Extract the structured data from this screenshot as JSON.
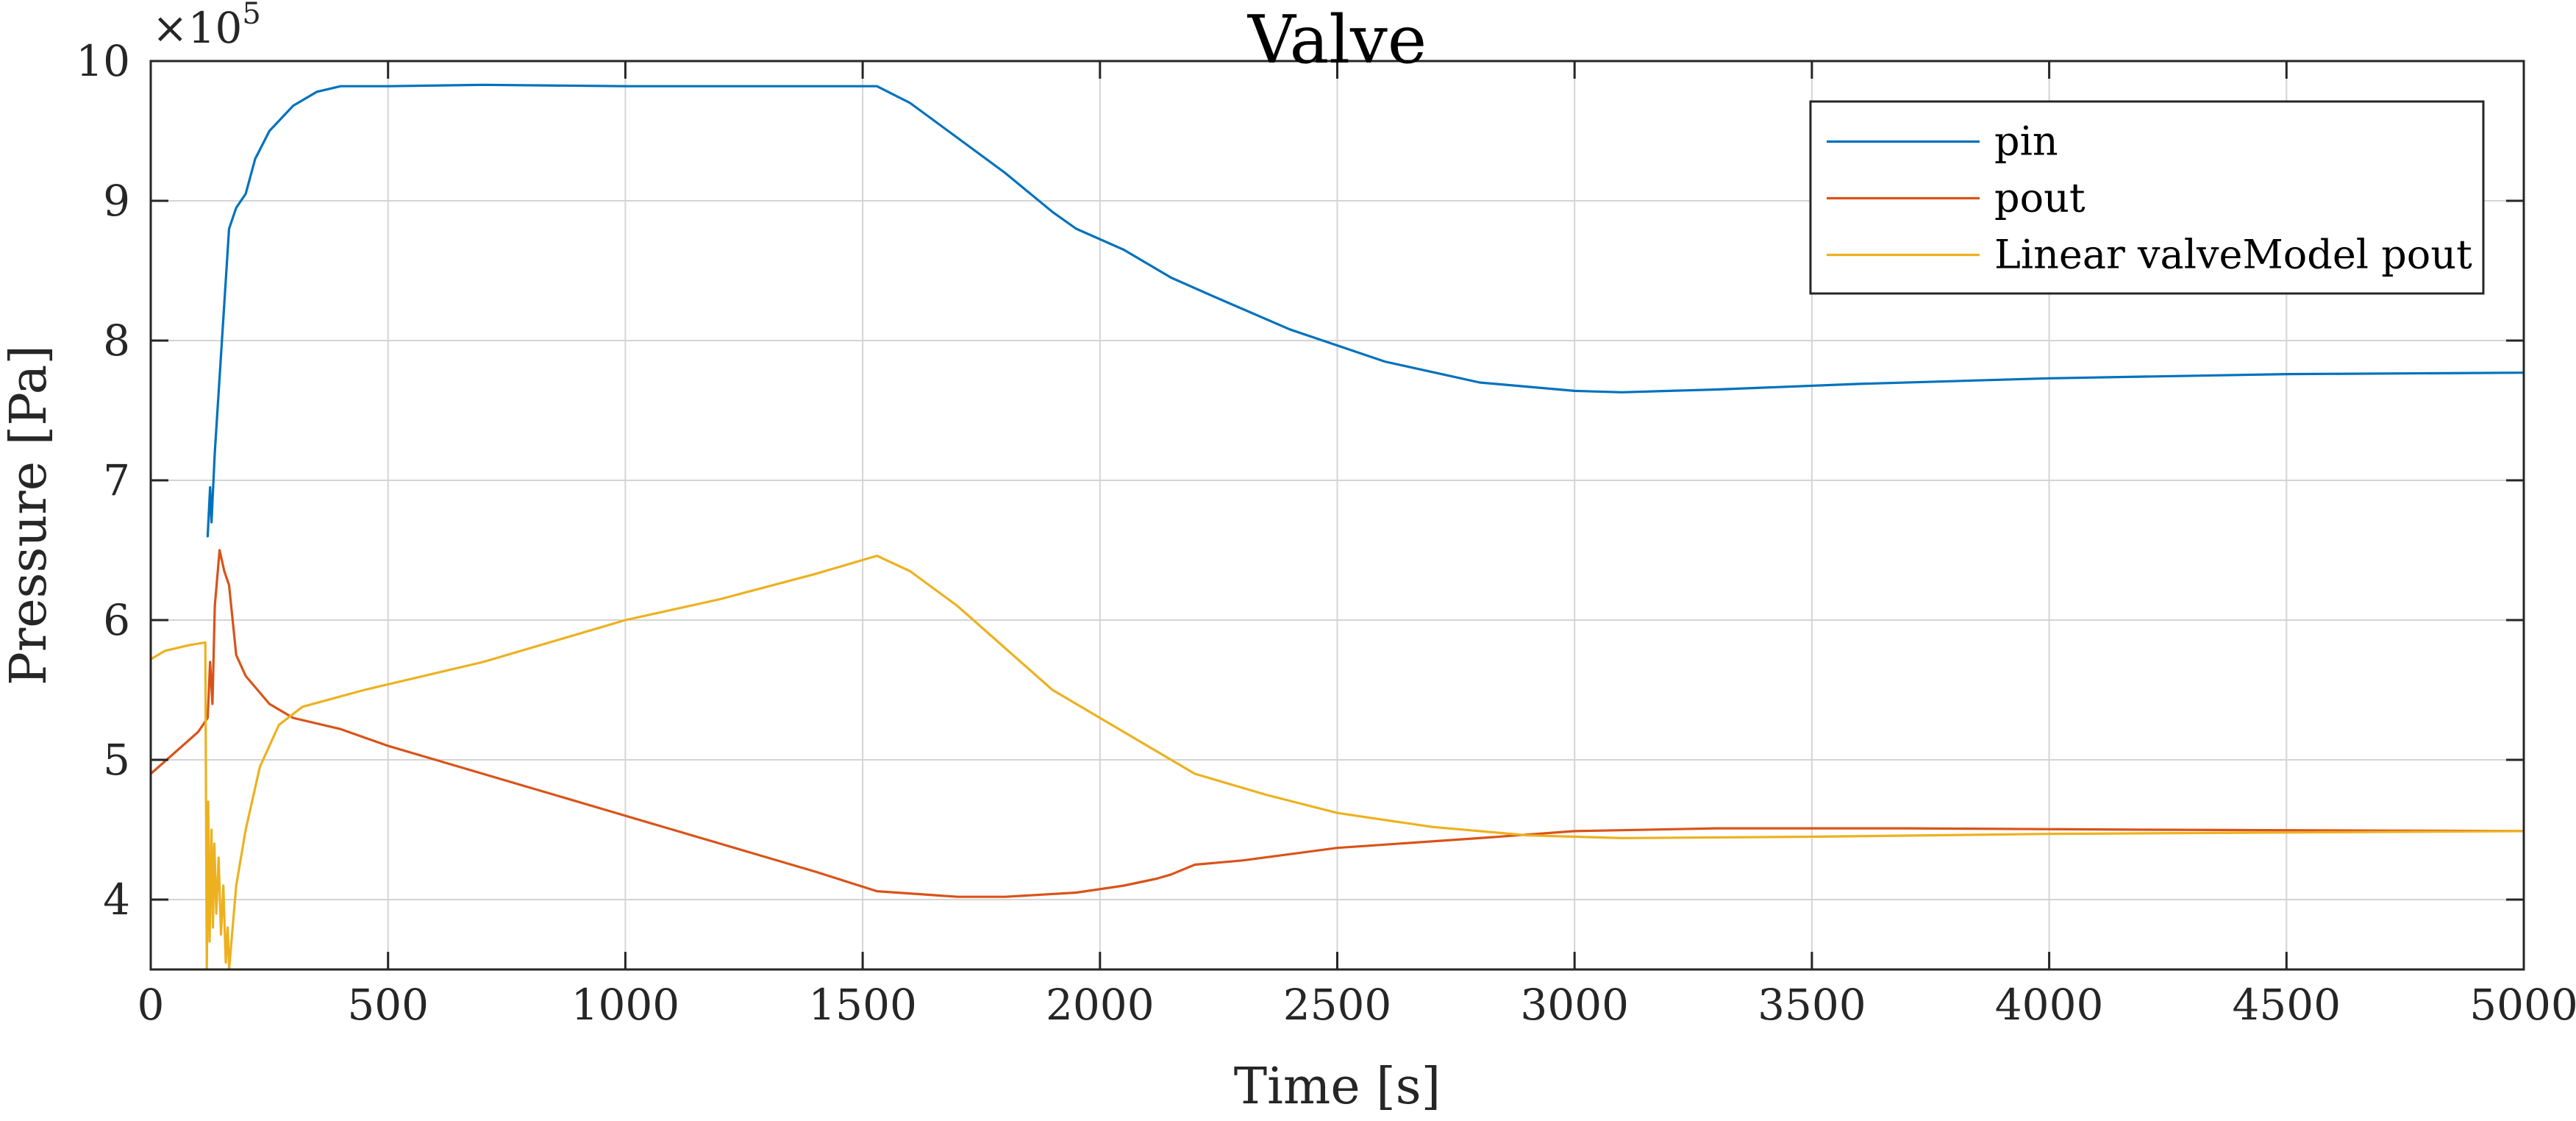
{
  "chart_data": {
    "type": "line",
    "title": "Valve",
    "xlabel": "Time [s]",
    "ylabel": "Pressure [Pa]",
    "y_exponent_base": "×10",
    "y_exponent_power": "5",
    "xlim": [
      0,
      5000
    ],
    "ylim": [
      3.5,
      10
    ],
    "x_ticks": [
      0,
      500,
      1000,
      1500,
      2000,
      2500,
      3000,
      3500,
      4000,
      4500,
      5000
    ],
    "x_tick_labels": [
      "0",
      "500",
      "1000",
      "1500",
      "2000",
      "2500",
      "3000",
      "3500",
      "4000",
      "4500",
      "5000"
    ],
    "y_ticks": [
      4,
      5,
      6,
      7,
      8,
      9,
      10
    ],
    "y_tick_labels": [
      "4",
      "5",
      "6",
      "7",
      "8",
      "9",
      "10"
    ],
    "grid": true,
    "legend_position": "top-right",
    "series": [
      {
        "name": "pin",
        "color": "#0072BD",
        "points": [
          [
            120,
            6.6
          ],
          [
            125,
            6.95
          ],
          [
            128,
            6.7
          ],
          [
            135,
            7.2
          ],
          [
            150,
            8.0
          ],
          [
            165,
            8.8
          ],
          [
            180,
            8.95
          ],
          [
            200,
            9.05
          ],
          [
            220,
            9.3
          ],
          [
            250,
            9.5
          ],
          [
            300,
            9.68
          ],
          [
            350,
            9.78
          ],
          [
            400,
            9.82
          ],
          [
            500,
            9.82
          ],
          [
            700,
            9.83
          ],
          [
            1000,
            9.82
          ],
          [
            1300,
            9.82
          ],
          [
            1500,
            9.82
          ],
          [
            1530,
            9.82
          ],
          [
            1600,
            9.7
          ],
          [
            1700,
            9.45
          ],
          [
            1800,
            9.2
          ],
          [
            1900,
            8.92
          ],
          [
            1950,
            8.8
          ],
          [
            2050,
            8.65
          ],
          [
            2150,
            8.45
          ],
          [
            2250,
            8.3
          ],
          [
            2400,
            8.08
          ],
          [
            2600,
            7.85
          ],
          [
            2800,
            7.7
          ],
          [
            3000,
            7.64
          ],
          [
            3100,
            7.63
          ],
          [
            3300,
            7.65
          ],
          [
            3600,
            7.69
          ],
          [
            4000,
            7.73
          ],
          [
            4500,
            7.76
          ],
          [
            5000,
            7.77
          ]
        ]
      },
      {
        "name": "pout",
        "color": "#D95319",
        "points": [
          [
            0,
            4.9
          ],
          [
            50,
            5.05
          ],
          [
            100,
            5.2
          ],
          [
            120,
            5.3
          ],
          [
            125,
            5.7
          ],
          [
            130,
            5.4
          ],
          [
            135,
            6.1
          ],
          [
            145,
            6.5
          ],
          [
            155,
            6.35
          ],
          [
            165,
            6.25
          ],
          [
            180,
            5.75
          ],
          [
            200,
            5.6
          ],
          [
            250,
            5.4
          ],
          [
            300,
            5.3
          ],
          [
            400,
            5.22
          ],
          [
            500,
            5.1
          ],
          [
            700,
            4.9
          ],
          [
            1000,
            4.6
          ],
          [
            1200,
            4.4
          ],
          [
            1400,
            4.2
          ],
          [
            1530,
            4.06
          ],
          [
            1700,
            4.02
          ],
          [
            1800,
            4.02
          ],
          [
            1950,
            4.05
          ],
          [
            2050,
            4.1
          ],
          [
            2120,
            4.15
          ],
          [
            2150,
            4.18
          ],
          [
            2200,
            4.25
          ],
          [
            2300,
            4.28
          ],
          [
            2500,
            4.37
          ],
          [
            2800,
            4.44
          ],
          [
            3000,
            4.49
          ],
          [
            3300,
            4.51
          ],
          [
            3700,
            4.51
          ],
          [
            4200,
            4.5
          ],
          [
            5000,
            4.49
          ]
        ]
      },
      {
        "name": "Linear valveModel pout",
        "color": "#EDB120",
        "points": [
          [
            0,
            5.72
          ],
          [
            30,
            5.78
          ],
          [
            80,
            5.82
          ],
          [
            115,
            5.84
          ],
          [
            118,
            3.5
          ],
          [
            121,
            4.7
          ],
          [
            124,
            3.7
          ],
          [
            128,
            4.5
          ],
          [
            131,
            3.8
          ],
          [
            134,
            4.4
          ],
          [
            138,
            3.9
          ],
          [
            143,
            4.3
          ],
          [
            148,
            3.75
          ],
          [
            153,
            4.1
          ],
          [
            158,
            3.55
          ],
          [
            162,
            3.8
          ],
          [
            165,
            3.5
          ],
          [
            180,
            4.1
          ],
          [
            200,
            4.5
          ],
          [
            230,
            4.95
          ],
          [
            270,
            5.25
          ],
          [
            320,
            5.38
          ],
          [
            450,
            5.5
          ],
          [
            700,
            5.7
          ],
          [
            1000,
            6.0
          ],
          [
            1200,
            6.15
          ],
          [
            1400,
            6.33
          ],
          [
            1530,
            6.46
          ],
          [
            1600,
            6.35
          ],
          [
            1700,
            6.1
          ],
          [
            1800,
            5.8
          ],
          [
            1900,
            5.5
          ],
          [
            2000,
            5.3
          ],
          [
            2100,
            5.1
          ],
          [
            2200,
            4.9
          ],
          [
            2350,
            4.75
          ],
          [
            2500,
            4.62
          ],
          [
            2700,
            4.52
          ],
          [
            2900,
            4.46
          ],
          [
            3100,
            4.44
          ],
          [
            3500,
            4.45
          ],
          [
            4000,
            4.47
          ],
          [
            4500,
            4.48
          ],
          [
            5000,
            4.49
          ]
        ]
      }
    ]
  }
}
